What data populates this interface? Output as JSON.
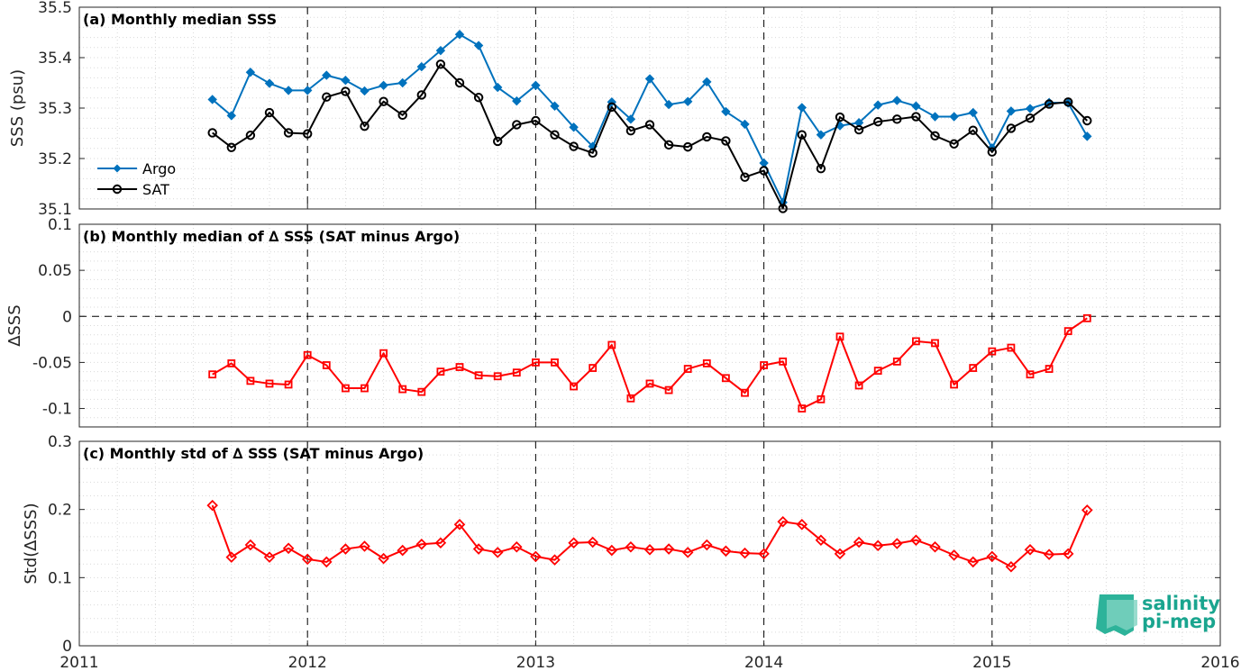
{
  "colors": {
    "argo": "#0072BD",
    "sat": "#000000",
    "delta": "#FF0000",
    "minor_grid": "#d9d9d9",
    "major_year": "#000000",
    "axis": "#262626"
  },
  "x_tick_labels": [
    "2011",
    "2012",
    "2013",
    "2014",
    "2015",
    "2016"
  ],
  "logo": {
    "line1": "salinity",
    "line2": "pi-mep"
  },
  "chart_data": [
    {
      "type": "line",
      "title": "(a) Monthly median SSS",
      "ylabel": "SSS (psu)",
      "xlim": [
        "2011-01",
        "2016-01"
      ],
      "ylim": [
        35.1,
        35.5
      ],
      "yticks": [
        35.1,
        35.2,
        35.3,
        35.4,
        35.5
      ],
      "ytick_labels": [
        "35.1",
        "35.2",
        "35.3",
        "35.4",
        "35.5"
      ],
      "grid": true,
      "legend": "lower-left",
      "x": [
        "2011-08",
        "2011-09",
        "2011-10",
        "2011-11",
        "2011-12",
        "2012-01",
        "2012-02",
        "2012-03",
        "2012-04",
        "2012-05",
        "2012-06",
        "2012-07",
        "2012-08",
        "2012-09",
        "2012-10",
        "2012-11",
        "2012-12",
        "2013-01",
        "2013-02",
        "2013-03",
        "2013-04",
        "2013-05",
        "2013-06",
        "2013-07",
        "2013-08",
        "2013-09",
        "2013-10",
        "2013-11",
        "2013-12",
        "2014-01",
        "2014-02",
        "2014-03",
        "2014-04",
        "2014-05",
        "2014-06",
        "2014-07",
        "2014-08",
        "2014-09",
        "2014-10",
        "2014-11",
        "2014-12",
        "2015-01",
        "2015-02",
        "2015-03",
        "2015-04",
        "2015-05",
        "2015-06"
      ],
      "series": [
        {
          "name": "Argo",
          "marker": "diamond-filled",
          "values": [
            35.317,
            35.285,
            35.371,
            35.349,
            35.335,
            35.335,
            35.365,
            35.355,
            35.334,
            35.345,
            35.35,
            35.382,
            35.414,
            35.446,
            35.424,
            35.341,
            35.314,
            35.345,
            35.304,
            35.262,
            35.224,
            35.312,
            35.278,
            35.358,
            35.307,
            35.313,
            35.352,
            35.293,
            35.268,
            35.191,
            35.113,
            35.301,
            35.247,
            35.265,
            35.271,
            35.306,
            35.315,
            35.304,
            35.283,
            35.283,
            35.291,
            35.221,
            35.294,
            35.299,
            35.311,
            35.31,
            35.244
          ]
        },
        {
          "name": "SAT",
          "marker": "circle-open",
          "values": [
            35.251,
            35.222,
            35.246,
            35.291,
            35.251,
            35.249,
            35.322,
            35.333,
            35.264,
            35.313,
            35.286,
            35.326,
            35.387,
            35.35,
            35.321,
            35.234,
            35.267,
            35.275,
            35.247,
            35.224,
            35.211,
            35.302,
            35.255,
            35.267,
            35.227,
            35.223,
            35.243,
            35.235,
            35.163,
            35.176,
            35.101,
            35.247,
            35.18,
            35.282,
            35.257,
            35.273,
            35.278,
            35.283,
            35.245,
            35.229,
            35.256,
            35.213,
            35.26,
            35.28,
            35.308,
            35.312,
            35.275
          ]
        }
      ]
    },
    {
      "type": "line",
      "title": "(b) Monthly median of ∆ SSS (SAT minus Argo)",
      "ylabel": "∆SSS",
      "xlim": [
        "2011-01",
        "2016-01"
      ],
      "ylim": [
        -0.12,
        0.1
      ],
      "yticks": [
        -0.1,
        -0.05,
        0,
        0.05,
        0.1
      ],
      "ytick_labels": [
        "-0.1",
        "-0.05",
        "0",
        "0.05",
        "0.1"
      ],
      "grid": true,
      "zero_line": true,
      "x": [
        "2011-08",
        "2011-09",
        "2011-10",
        "2011-11",
        "2011-12",
        "2012-01",
        "2012-02",
        "2012-03",
        "2012-04",
        "2012-05",
        "2012-06",
        "2012-07",
        "2012-08",
        "2012-09",
        "2012-10",
        "2012-11",
        "2012-12",
        "2013-01",
        "2013-02",
        "2013-03",
        "2013-04",
        "2013-05",
        "2013-06",
        "2013-07",
        "2013-08",
        "2013-09",
        "2013-10",
        "2013-11",
        "2013-12",
        "2014-01",
        "2014-02",
        "2014-03",
        "2014-04",
        "2014-05",
        "2014-06",
        "2014-07",
        "2014-08",
        "2014-09",
        "2014-10",
        "2014-11",
        "2014-12",
        "2015-01",
        "2015-02",
        "2015-03",
        "2015-04",
        "2015-05",
        "2015-06"
      ],
      "series": [
        {
          "marker": "square-open",
          "values": [
            -0.063,
            -0.051,
            -0.07,
            -0.073,
            -0.074,
            -0.042,
            -0.053,
            -0.078,
            -0.078,
            -0.04,
            -0.079,
            -0.082,
            -0.06,
            -0.055,
            -0.064,
            -0.065,
            -0.061,
            -0.05,
            -0.05,
            -0.076,
            -0.056,
            -0.031,
            -0.089,
            -0.073,
            -0.08,
            -0.057,
            -0.051,
            -0.067,
            -0.083,
            -0.053,
            -0.049,
            -0.1,
            -0.09,
            -0.022,
            -0.075,
            -0.059,
            -0.049,
            -0.027,
            -0.029,
            -0.074,
            -0.056,
            -0.038,
            -0.034,
            -0.063,
            -0.057,
            -0.016,
            -0.002
          ]
        }
      ]
    },
    {
      "type": "line",
      "title": "(c) Monthly std of ∆ SSS (SAT minus Argo)",
      "ylabel": "Std(∆SSS)",
      "xlim": [
        "2011-01",
        "2016-01"
      ],
      "ylim": [
        0,
        0.3
      ],
      "yticks": [
        0,
        0.1,
        0.2,
        0.3
      ],
      "ytick_labels": [
        "0",
        "0.1",
        "0.2",
        "0.3"
      ],
      "grid": true,
      "x": [
        "2011-08",
        "2011-09",
        "2011-10",
        "2011-11",
        "2011-12",
        "2012-01",
        "2012-02",
        "2012-03",
        "2012-04",
        "2012-05",
        "2012-06",
        "2012-07",
        "2012-08",
        "2012-09",
        "2012-10",
        "2012-11",
        "2012-12",
        "2013-01",
        "2013-02",
        "2013-03",
        "2013-04",
        "2013-05",
        "2013-06",
        "2013-07",
        "2013-08",
        "2013-09",
        "2013-10",
        "2013-11",
        "2013-12",
        "2014-01",
        "2014-02",
        "2014-03",
        "2014-04",
        "2014-05",
        "2014-06",
        "2014-07",
        "2014-08",
        "2014-09",
        "2014-10",
        "2014-11",
        "2014-12",
        "2015-01",
        "2015-02",
        "2015-03",
        "2015-04",
        "2015-05",
        "2015-06"
      ],
      "series": [
        {
          "marker": "diamond-open",
          "values": [
            0.206,
            0.13,
            0.148,
            0.13,
            0.143,
            0.127,
            0.123,
            0.142,
            0.146,
            0.128,
            0.14,
            0.149,
            0.151,
            0.178,
            0.142,
            0.137,
            0.145,
            0.131,
            0.126,
            0.151,
            0.152,
            0.14,
            0.145,
            0.141,
            0.142,
            0.137,
            0.148,
            0.139,
            0.136,
            0.135,
            0.182,
            0.178,
            0.155,
            0.135,
            0.152,
            0.147,
            0.15,
            0.155,
            0.145,
            0.133,
            0.123,
            0.131,
            0.116,
            0.141,
            0.134,
            0.135,
            0.199
          ]
        }
      ]
    }
  ]
}
